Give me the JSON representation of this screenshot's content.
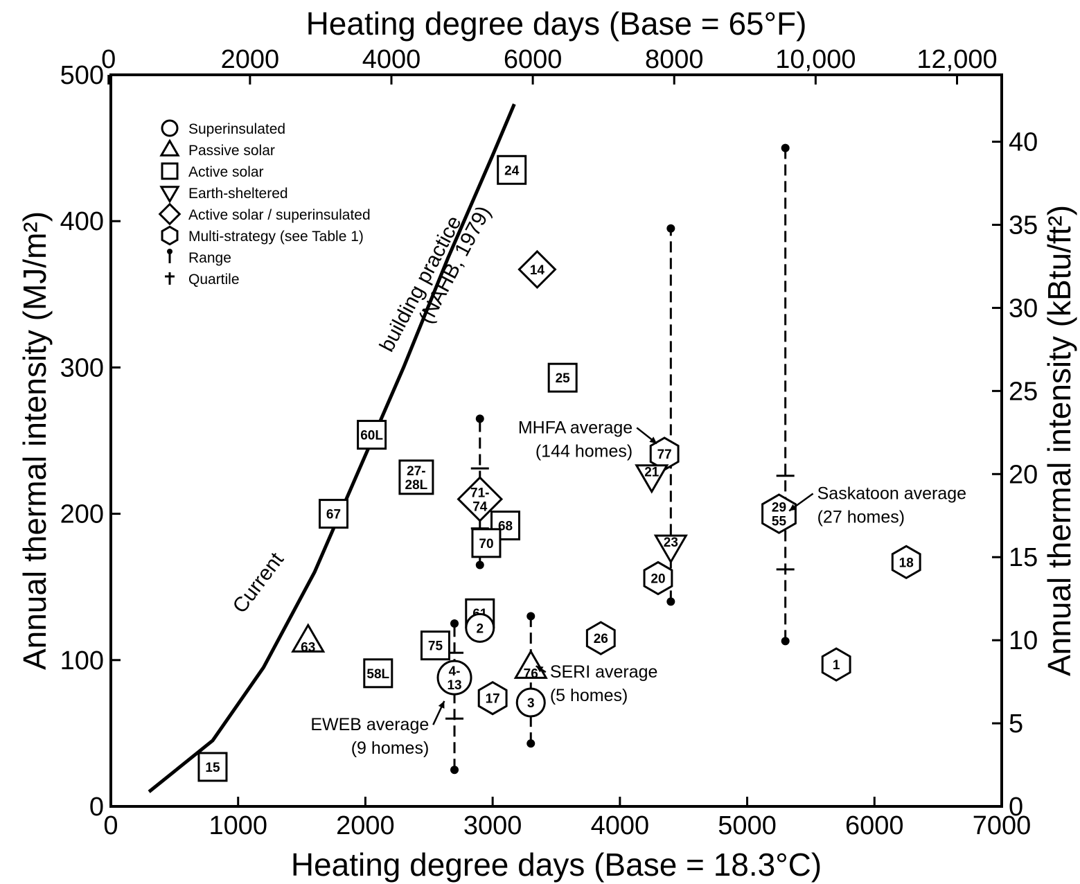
{
  "chart_data": {
    "type": "scatter",
    "xlabel_bottom": "Heating degree days (Base = 18.3°C)",
    "xlabel_top": "Heating degree days (Base = 65°F)",
    "ylabel_left": "Annual thermal intensity (MJ/m²)",
    "ylabel_right": "Annual thermal intensity (kBtu/ft²)",
    "xlim": [
      0,
      7000
    ],
    "ylim": [
      0,
      500
    ],
    "x_ticks_bottom": [
      "0",
      "1000",
      "2000",
      "3000",
      "4000",
      "5000",
      "6000",
      "7000"
    ],
    "x_ticks_top": [
      {
        "label": "0",
        "value": 0
      },
      {
        "label": "2000",
        "value": 2000
      },
      {
        "label": "4000",
        "value": 4000
      },
      {
        "label": "6000",
        "value": 6000
      },
      {
        "label": "8000",
        "value": 8000
      },
      {
        "label": "10,000",
        "value": 10000
      },
      {
        "label": "12,000",
        "value": 12000
      }
    ],
    "y_ticks_left": [
      "0",
      "100",
      "200",
      "300",
      "400",
      "500"
    ],
    "y_ticks_right": [
      {
        "label": "0",
        "value": 0
      },
      {
        "label": "5",
        "value": 5
      },
      {
        "label": "10",
        "value": 10
      },
      {
        "label": "15",
        "value": 15
      },
      {
        "label": "20",
        "value": 20
      },
      {
        "label": "25",
        "value": 25
      },
      {
        "label": "30",
        "value": 30
      },
      {
        "label": "35",
        "value": 35
      },
      {
        "label": "40",
        "value": 40
      }
    ],
    "legend": {
      "placement": "top-left",
      "entries": [
        {
          "symbol": "circle",
          "label": "Superinsulated"
        },
        {
          "symbol": "triangle",
          "label": "Passive solar"
        },
        {
          "symbol": "square",
          "label": "Active solar"
        },
        {
          "symbol": "triangle-down",
          "label": "Earth-sheltered"
        },
        {
          "symbol": "diamond",
          "label": "Active solar / superinsulated"
        },
        {
          "symbol": "hexagon",
          "label": "Multi-strategy (see Table 1)"
        },
        {
          "symbol": "range",
          "label": "Range"
        },
        {
          "symbol": "quartile",
          "label": "Quartile"
        }
      ]
    },
    "curve": {
      "label_lines": [
        "Current",
        "building practice",
        "(NAHB, 1979)"
      ],
      "points": [
        [
          300,
          10
        ],
        [
          800,
          45
        ],
        [
          1200,
          95
        ],
        [
          1600,
          160
        ],
        [
          1850,
          210
        ],
        [
          2050,
          250
        ],
        [
          2300,
          300
        ],
        [
          2650,
          375
        ],
        [
          3000,
          445
        ],
        [
          3170,
          480
        ]
      ]
    },
    "points": [
      {
        "label": "15",
        "shape": "square",
        "x": 800,
        "y": 27
      },
      {
        "label": "67",
        "shape": "square",
        "x": 1750,
        "y": 200
      },
      {
        "label": "60L",
        "shape": "square",
        "x": 2050,
        "y": 254
      },
      {
        "label": "27-\n28L",
        "shape": "square",
        "x": 2400,
        "y": 225
      },
      {
        "label": "58L",
        "shape": "square",
        "x": 2100,
        "y": 91
      },
      {
        "label": "63",
        "shape": "triangle",
        "x": 1550,
        "y": 113
      },
      {
        "label": "75",
        "shape": "square",
        "x": 2550,
        "y": 110
      },
      {
        "label": "61",
        "shape": "square",
        "x": 2900,
        "y": 132
      },
      {
        "label": "2",
        "shape": "circle",
        "x": 2900,
        "y": 122
      },
      {
        "label": "4-\n13",
        "shape": "circle",
        "x": 2700,
        "y": 88
      },
      {
        "label": "17",
        "shape": "hexagon",
        "x": 3000,
        "y": 74
      },
      {
        "label": "3",
        "shape": "circle",
        "x": 3300,
        "y": 71
      },
      {
        "label": "76",
        "shape": "triangle",
        "x": 3300,
        "y": 95
      },
      {
        "label": "71-\n74",
        "shape": "diamond",
        "x": 2900,
        "y": 210
      },
      {
        "label": "68",
        "shape": "square",
        "x": 3100,
        "y": 192
      },
      {
        "label": "70",
        "shape": "square",
        "x": 2950,
        "y": 180
      },
      {
        "label": "24",
        "shape": "square",
        "x": 3150,
        "y": 435
      },
      {
        "label": "14",
        "shape": "diamond",
        "x": 3350,
        "y": 367
      },
      {
        "label": "25",
        "shape": "square",
        "x": 3550,
        "y": 293
      },
      {
        "label": "26",
        "shape": "hexagon",
        "x": 3850,
        "y": 115
      },
      {
        "label": "77",
        "shape": "hexagon",
        "x": 4350,
        "y": 241
      },
      {
        "label": "21",
        "shape": "triangle-down",
        "x": 4250,
        "y": 226
      },
      {
        "label": "23",
        "shape": "triangle-down",
        "x": 4400,
        "y": 178
      },
      {
        "label": "20",
        "shape": "hexagon",
        "x": 4300,
        "y": 156
      },
      {
        "label": "29\n55",
        "shape": "hexagon",
        "x": 5250,
        "y": 200
      },
      {
        "label": "18",
        "shape": "hexagon",
        "x": 6250,
        "y": 167
      },
      {
        "label": "1",
        "shape": "hexagon",
        "x": 5700,
        "y": 97
      }
    ],
    "ranges": [
      {
        "x": 2700,
        "min": 25,
        "max": 125,
        "quartiles": [
          60,
          105
        ]
      },
      {
        "x": 2900,
        "min": 165,
        "max": 265,
        "quartiles": [
          190,
          231
        ]
      },
      {
        "x": 3300,
        "min": 43,
        "max": 130,
        "quartiles": []
      },
      {
        "x": 4400,
        "min": 140,
        "max": 395,
        "quartiles": []
      },
      {
        "x": 5300,
        "min": 113,
        "max": 450,
        "quartiles": [
          162,
          226
        ]
      }
    ],
    "annotations": [
      {
        "lines": [
          "EWEB average",
          "(9 homes)"
        ],
        "anchor": "end",
        "x": 2500,
        "y": 52,
        "arrow_to": [
          2620,
          72
        ]
      },
      {
        "lines": [
          "SERI average",
          "(5 homes)"
        ],
        "anchor": "start",
        "x": 3450,
        "y": 88,
        "arrow_to": [
          3340,
          96
        ]
      },
      {
        "lines": [
          "MHFA average",
          "(144 homes)"
        ],
        "anchor": "end",
        "x": 4100,
        "y": 255,
        "arrow_to": [
          4290,
          248
        ]
      },
      {
        "lines": [
          "Saskatoon average",
          "(27 homes)"
        ],
        "anchor": "start",
        "x": 5550,
        "y": 210,
        "arrow_to": [
          5330,
          202
        ]
      }
    ]
  }
}
